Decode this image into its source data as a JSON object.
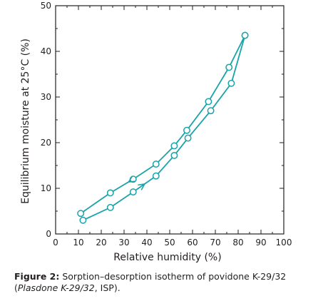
{
  "chart_data": {
    "type": "line",
    "xlabel": "Relative humidity (%)",
    "ylabel": "Equilibrium moisture at 25°C (%)",
    "xlim": [
      0,
      100
    ],
    "ylim": [
      0,
      50
    ],
    "x_ticks": [
      0,
      10,
      20,
      30,
      40,
      50,
      60,
      70,
      80,
      90,
      100
    ],
    "y_ticks": [
      0,
      10,
      20,
      30,
      40,
      50
    ],
    "grid": false,
    "legend": "none",
    "series_color": "#1aa3a8",
    "series": [
      {
        "x": [
          11,
          24,
          34,
          44,
          52,
          57.5,
          67,
          76,
          83
        ],
        "y": [
          4.5,
          9,
          12,
          15.3,
          19.3,
          22.7,
          29,
          36.5,
          43.5
        ]
      },
      {
        "x": [
          12,
          24,
          34,
          44,
          52,
          58,
          68,
          77,
          83
        ],
        "y": [
          3,
          5.8,
          9.2,
          12.7,
          17.2,
          21,
          27,
          33,
          43.5
        ]
      }
    ],
    "annotations": [
      {
        "type": "arrow",
        "on_series": 0,
        "at_x": 32,
        "direction": "left"
      },
      {
        "type": "arrow",
        "on_series": 1,
        "at_x": 39,
        "direction": "right"
      }
    ]
  },
  "caption": {
    "label": "Figure 2:",
    "text_part1": " Sorption–desorption isotherm of povidone K-29/32 (",
    "italic_part": "Plasdone K-29/32",
    "text_part2": ", ISP)."
  }
}
